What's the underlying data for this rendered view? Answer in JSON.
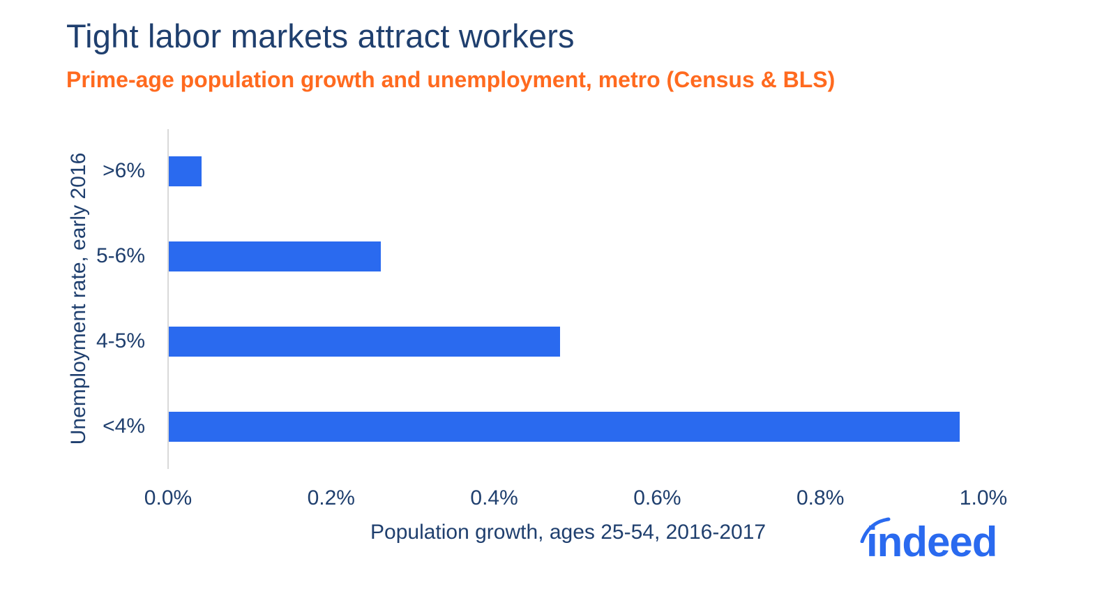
{
  "header": {
    "title": "Tight labor markets attract workers",
    "subtitle": "Prime-age population growth and unemployment, metro (Census & BLS)"
  },
  "colors": {
    "title": "#1f3f6e",
    "subtitle": "#ff6a1f",
    "bar": "#2a6aef",
    "axis": "#d9d9d9",
    "logo": "#2a6aef"
  },
  "logo": {
    "text": "indeed"
  },
  "chart_data": {
    "type": "bar",
    "orientation": "horizontal",
    "title": "Tight labor markets attract workers",
    "subtitle": "Prime-age population growth and unemployment, metro (Census & BLS)",
    "xlabel": "Population growth, ages 25-54, 2016-2017",
    "ylabel": "Unemployment rate, early 2016",
    "categories": [
      ">6%",
      "5-6%",
      "4-5%",
      "<4%"
    ],
    "values": [
      0.04,
      0.26,
      0.48,
      0.97
    ],
    "value_unit": "%",
    "xlim": [
      0.0,
      1.0
    ],
    "x_ticks": [
      "0.0%",
      "0.2%",
      "0.4%",
      "0.6%",
      "0.8%",
      "1.0%"
    ],
    "grid": false,
    "legend": null
  }
}
